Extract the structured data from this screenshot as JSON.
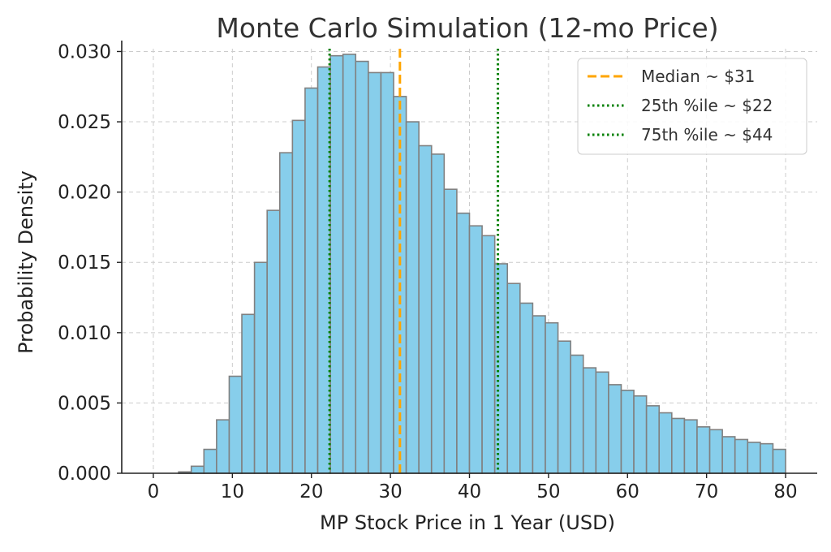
{
  "chart_data": {
    "type": "bar",
    "title": "Monte Carlo Simulation (12-mo Price)",
    "xlabel": "MP Stock Price in 1 Year (USD)",
    "ylabel": "Probability Density",
    "xlim": [
      -4,
      84
    ],
    "ylim": [
      0,
      0.0302
    ],
    "x_ticks": [
      0,
      10,
      20,
      30,
      40,
      50,
      60,
      70,
      80
    ],
    "x_tick_labels": [
      "0",
      "10",
      "20",
      "30",
      "40",
      "50",
      "60",
      "70",
      "80"
    ],
    "y_ticks": [
      0,
      0.005,
      0.01,
      0.015,
      0.02,
      0.025,
      0.03
    ],
    "y_tick_labels": [
      "0.000",
      "0.005",
      "0.010",
      "0.015",
      "0.020",
      "0.025",
      "0.030"
    ],
    "grid": true,
    "bin_edges": [
      0,
      1.6,
      3.2,
      4.8,
      6.4,
      8,
      9.6,
      11.2,
      12.8,
      14.4,
      16,
      17.6,
      19.2,
      20.8,
      22.4,
      24,
      25.6,
      27.2,
      28.8,
      30.4,
      32,
      33.6,
      35.2,
      36.8,
      38.4,
      40,
      41.6,
      43.2,
      44.8,
      46.4,
      48,
      49.6,
      51.2,
      52.8,
      54.4,
      56,
      57.6,
      59.2,
      60.8,
      62.4,
      64,
      65.6,
      67.2,
      68.8,
      70.4,
      72,
      73.6,
      75.2,
      76.8,
      78.4,
      80
    ],
    "values": [
      0,
      0,
      0.0001,
      0.0005,
      0.0017,
      0.0038,
      0.0069,
      0.0113,
      0.015,
      0.0187,
      0.0228,
      0.0251,
      0.0274,
      0.0289,
      0.0297,
      0.0298,
      0.0293,
      0.0285,
      0.0285,
      0.0268,
      0.025,
      0.0233,
      0.0227,
      0.0202,
      0.0185,
      0.0176,
      0.0169,
      0.0149,
      0.0135,
      0.0121,
      0.0112,
      0.0107,
      0.0094,
      0.0084,
      0.0075,
      0.0072,
      0.0063,
      0.0059,
      0.0055,
      0.0048,
      0.0043,
      0.0039,
      0.0038,
      0.0033,
      0.0031,
      0.0026,
      0.0024,
      0.0022,
      0.0021,
      0.0017
    ],
    "bar_color": "#87CEEB",
    "bar_edge_color": "#808080",
    "reference_lines": [
      {
        "label": "Median ~ $31",
        "x": 31.2,
        "color": "#FFA500",
        "style": "dashed"
      },
      {
        "label": "25th %ile ~ $22",
        "x": 22.3,
        "color": "#008000",
        "style": "dotted"
      },
      {
        "label": "75th %ile ~ $44",
        "x": 43.6,
        "color": "#008000",
        "style": "dotted"
      }
    ],
    "legend_position": "top-right"
  }
}
